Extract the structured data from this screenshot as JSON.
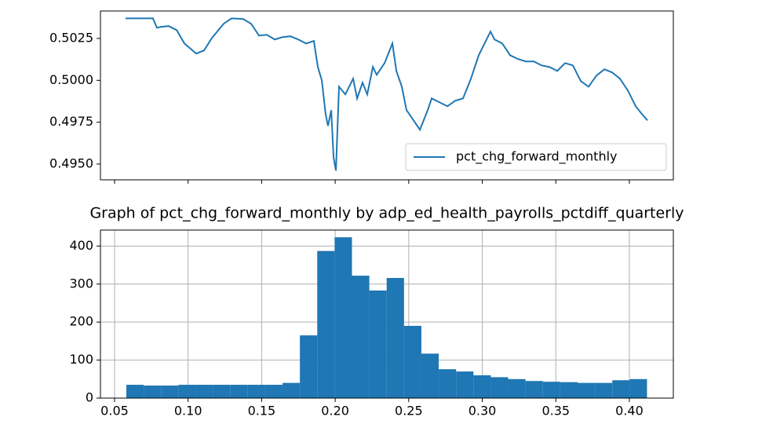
{
  "chart_data": [
    {
      "type": "line",
      "x": [
        0.0575,
        0.0761,
        0.0788,
        0.0815,
        0.0868,
        0.0922,
        0.0975,
        0.1055,
        0.1108,
        0.1162,
        0.1242,
        0.1295,
        0.1375,
        0.1428,
        0.1482,
        0.1535,
        0.1589,
        0.1642,
        0.1695,
        0.1749,
        0.1802,
        0.1855,
        0.1882,
        0.1909,
        0.1935,
        0.1951,
        0.1973,
        0.1989,
        0.2005,
        0.2026,
        0.2069,
        0.2122,
        0.2149,
        0.2186,
        0.2218,
        0.2256,
        0.2282,
        0.2336,
        0.2389,
        0.2416,
        0.2453,
        0.2485,
        0.2522,
        0.2576,
        0.2629,
        0.2656,
        0.2709,
        0.2763,
        0.2816,
        0.2869,
        0.2923,
        0.2976,
        0.3029,
        0.3056,
        0.3083,
        0.3136,
        0.3189,
        0.3243,
        0.3296,
        0.335,
        0.3403,
        0.3456,
        0.351,
        0.3563,
        0.3616,
        0.367,
        0.3723,
        0.3776,
        0.383,
        0.3883,
        0.3936,
        0.399,
        0.4043,
        0.4086,
        0.4123
      ],
      "series": [
        {
          "name": "pct_chg_forward_monthly",
          "color": "#1f77b4",
          "values": [
            0.5037,
            0.5037,
            0.50314,
            0.50319,
            0.50324,
            0.503,
            0.5022,
            0.5016,
            0.50178,
            0.50253,
            0.50338,
            0.5037,
            0.50366,
            0.50338,
            0.50267,
            0.50272,
            0.50244,
            0.50258,
            0.50263,
            0.50244,
            0.5022,
            0.50235,
            0.5008,
            0.5,
            0.49798,
            0.49728,
            0.49822,
            0.4954,
            0.49461,
            0.49962,
            0.49916,
            0.5001,
            0.49892,
            0.49986,
            0.49916,
            0.5008,
            0.50033,
            0.50103,
            0.5022,
            0.50056,
            0.49962,
            0.49822,
            0.49775,
            0.49705,
            0.49822,
            0.49892,
            0.49869,
            0.49845,
            0.49878,
            0.49892,
            0.5001,
            0.5015,
            0.50244,
            0.50291,
            0.50244,
            0.5022,
            0.5015,
            0.50127,
            0.50113,
            0.50113,
            0.50089,
            0.5008,
            0.50056,
            0.50103,
            0.50089,
            0.49995,
            0.49962,
            0.50028,
            0.50066,
            0.50047,
            0.5001,
            0.49939,
            0.49845,
            0.49798,
            0.49761
          ]
        }
      ],
      "xlim": [
        0.0404,
        0.4299
      ],
      "ylim": [
        0.49406,
        0.50414
      ],
      "xticks": [
        0.05,
        0.1,
        0.15,
        0.2,
        0.25,
        0.3,
        0.35,
        0.4
      ],
      "yticks": [
        {
          "value": 0.495,
          "label": "0.4950"
        },
        {
          "value": 0.4975,
          "label": "0.4975"
        },
        {
          "value": 0.5,
          "label": "0.5000"
        },
        {
          "value": 0.5025,
          "label": "0.5025"
        }
      ],
      "show_xtick_labels": false,
      "grid": false,
      "legend": "lower right"
    },
    {
      "type": "histogram",
      "title": "Graph of pct_chg_forward_monthly by adp_ed_health_payrolls_pctdiff_quarterly",
      "bins": [
        0.058,
        0.0698,
        0.0816,
        0.0934,
        0.1052,
        0.117,
        0.1288,
        0.1406,
        0.1524,
        0.1642,
        0.176,
        0.1878,
        0.1996,
        0.2114,
        0.2232,
        0.235,
        0.2468,
        0.2586,
        0.2704,
        0.2822,
        0.294,
        0.3058,
        0.3176,
        0.3294,
        0.3412,
        0.353,
        0.3648,
        0.3766,
        0.3884,
        0.4002,
        0.412
      ],
      "values": [
        35,
        33,
        33,
        35,
        35,
        35,
        35,
        35,
        35,
        40,
        165,
        387,
        423,
        322,
        283,
        316,
        190,
        117,
        76,
        70,
        60,
        55,
        50,
        45,
        43,
        42,
        40,
        40,
        47,
        50
      ],
      "color": "#1f77b4",
      "xlim": [
        0.0404,
        0.4299
      ],
      "ylim": [
        0,
        442
      ],
      "xticks": [
        0.05,
        {
          "value": 0.1,
          "label": "0.10"
        },
        0.15,
        {
          "value": 0.2,
          "label": "0.20"
        },
        0.25,
        {
          "value": 0.3,
          "label": "0.30"
        },
        0.35,
        {
          "value": 0.4,
          "label": "0.40"
        }
      ],
      "yticks": [
        0,
        100,
        200,
        300,
        400
      ],
      "show_xtick_labels": true,
      "grid": true
    }
  ]
}
